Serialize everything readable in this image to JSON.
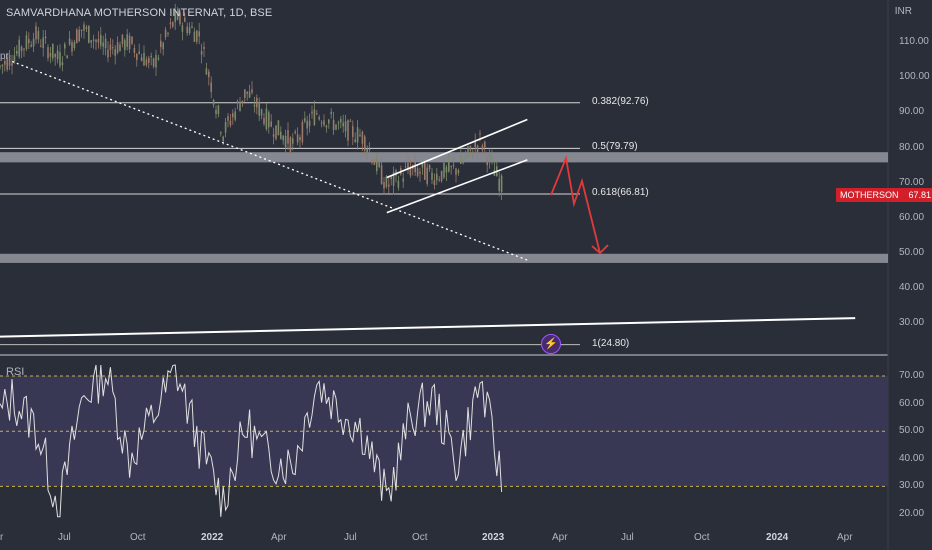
{
  "header": {
    "title": "SAMVARDHANA MOTHERSON INTERNAT, 1D, BSE",
    "currency": "INR"
  },
  "indicator": {
    "label": "RSI"
  },
  "badge": {
    "symbol": "MOTHERSON",
    "price": "67.81"
  },
  "colors": {
    "background": "#2a2e39",
    "up_candle": "#7a8a6a",
    "down_candle": "#9a7a6a",
    "rsi_line": "#e0e0e0",
    "rsi_band": "#3a3a58",
    "zone": "#9598a1",
    "projection": "#e23a3a",
    "badge": "#d21f2a"
  },
  "chart_data": {
    "type": "line",
    "title": "SAMVARDHANA MOTHERSON INTERNAT, 1D, BSE",
    "x_ticks": [
      "Jul",
      "Oct",
      "2022",
      "Apr",
      "Jul",
      "Oct",
      "2023",
      "Apr",
      "Jul",
      "Oct",
      "2024",
      "Apr"
    ],
    "x_ticks_partial": [
      "pr",
      "r"
    ],
    "price_axis": {
      "unit": "INR",
      "ticks": [
        "110.00",
        "100.00",
        "90.00",
        "80.00",
        "70.00",
        "60.00",
        "50.00",
        "40.00",
        "30.00"
      ],
      "ylim": [
        21,
        122
      ]
    },
    "rsi_axis": {
      "ticks": [
        "70.00",
        "60.00",
        "50.00",
        "40.00",
        "30.00",
        "20.00"
      ],
      "ylim": [
        15,
        75
      ],
      "bands": [
        70,
        50,
        30
      ]
    },
    "price_series_anchors": [
      {
        "x": "2021-05",
        "y": 100
      },
      {
        "x": "2021-06",
        "y": 106
      },
      {
        "x": "2021-07",
        "y": 112
      },
      {
        "x": "2021-08",
        "y": 105
      },
      {
        "x": "2021-09",
        "y": 114
      },
      {
        "x": "2021-10",
        "y": 108
      },
      {
        "x": "2021-11",
        "y": 110
      },
      {
        "x": "2021-12",
        "y": 103
      },
      {
        "x": "2022-01",
        "y": 117
      },
      {
        "x": "2022-02",
        "y": 112
      },
      {
        "x": "2022-03",
        "y": 84
      },
      {
        "x": "2022-04",
        "y": 96
      },
      {
        "x": "2022-05",
        "y": 87
      },
      {
        "x": "2022-06",
        "y": 81
      },
      {
        "x": "2022-07",
        "y": 90
      },
      {
        "x": "2022-08",
        "y": 86
      },
      {
        "x": "2022-09",
        "y": 83
      },
      {
        "x": "2022-10",
        "y": 69
      },
      {
        "x": "2022-11",
        "y": 74
      },
      {
        "x": "2022-12",
        "y": 72
      },
      {
        "x": "2023-01",
        "y": 74
      },
      {
        "x": "2023-02",
        "y": 82
      },
      {
        "x": "2023-03",
        "y": 67.81
      }
    ],
    "rsi_series_anchors": [
      {
        "x": "2021-05",
        "y": 50
      },
      {
        "x": "2021-06",
        "y": 62
      },
      {
        "x": "2021-07",
        "y": 52
      },
      {
        "x": "2021-08",
        "y": 22
      },
      {
        "x": "2021-09",
        "y": 62
      },
      {
        "x": "2021-10",
        "y": 72
      },
      {
        "x": "2021-11",
        "y": 40
      },
      {
        "x": "2021-12",
        "y": 55
      },
      {
        "x": "2022-01",
        "y": 72
      },
      {
        "x": "2022-02",
        "y": 45
      },
      {
        "x": "2022-03",
        "y": 25
      },
      {
        "x": "2022-04",
        "y": 52
      },
      {
        "x": "2022-05",
        "y": 40
      },
      {
        "x": "2022-06",
        "y": 38
      },
      {
        "x": "2022-07",
        "y": 68
      },
      {
        "x": "2022-08",
        "y": 58
      },
      {
        "x": "2022-09",
        "y": 50
      },
      {
        "x": "2022-10",
        "y": 25
      },
      {
        "x": "2022-11",
        "y": 55
      },
      {
        "x": "2022-12",
        "y": 62
      },
      {
        "x": "2023-01",
        "y": 38
      },
      {
        "x": "2023-02",
        "y": 68
      },
      {
        "x": "2023-03",
        "y": 28
      }
    ],
    "fib_levels": [
      {
        "label": "0.382(92.76)",
        "value": 92.76
      },
      {
        "label": "0.5(79.79)",
        "value": 79.79
      },
      {
        "label": "0.618(66.81)",
        "value": 66.81
      },
      {
        "label": "1(24.80)",
        "value": 24.8
      }
    ],
    "zones": [
      {
        "from": 75.8,
        "to": 78.7
      },
      {
        "from": 47.2,
        "to": 49.8
      }
    ],
    "trendlines": [
      {
        "style": "dotted",
        "from": {
          "x": "2021-06",
          "y": 104.5
        },
        "to": {
          "x": "2023-04",
          "y": 48
        }
      },
      {
        "style": "solid",
        "from": {
          "x": "2021-04",
          "y": 26
        },
        "to": {
          "x": "2024-06",
          "y": 31.5
        }
      }
    ],
    "channel": [
      {
        "from": {
          "x": "2022-10",
          "y": 71.5
        },
        "to": {
          "x": "2023-04",
          "y": 88
        }
      },
      {
        "from": {
          "x": "2022-10",
          "y": 61.5
        },
        "to": {
          "x": "2023-04",
          "y": 76.5
        }
      }
    ],
    "projection": [
      {
        "x": "2023-03",
        "y": 66.5
      },
      {
        "x": "2023-04",
        "y": 77
      },
      {
        "x": "2023-04",
        "y": 64
      },
      {
        "x": "2023-04",
        "y": 70.5
      },
      {
        "x": "2023-05",
        "y": 50
      }
    ],
    "last_price": {
      "label": "MOTHERSON",
      "value": 67.81
    }
  }
}
